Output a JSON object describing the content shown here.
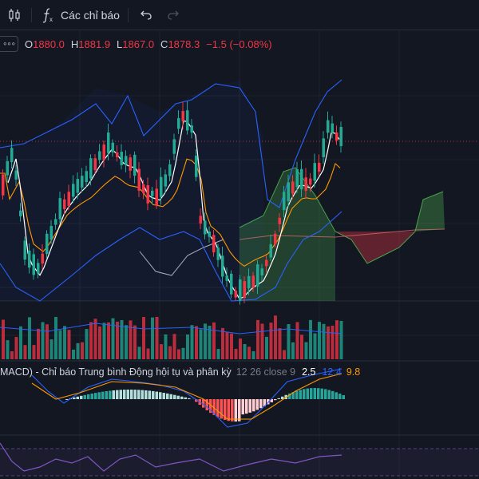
{
  "toolbar": {
    "indicators_label": "Các chỉ báo"
  },
  "legend": {
    "more_glyph": "∘∘∘",
    "open_key": "O",
    "open": "1880.0",
    "high_key": "H",
    "high": "1881.9",
    "low_key": "L",
    "low": "1867.0",
    "close_key": "C",
    "close": "1878.3",
    "change": "−1.5 (−0.08%)"
  },
  "macd": {
    "name": "MACD) - Chỉ báo Trung bình Động hội tụ và phân kỳ",
    "params": "12 26 close 9",
    "histogram": "2.5",
    "macd_line": "12.4",
    "signal_line": "9.8"
  },
  "colors": {
    "up": "#22ab94",
    "down": "#f23645",
    "background": "#131722",
    "bollinger": "#2962ff",
    "ma_fast": "#ffffff",
    "ma_slow": "#ff9800",
    "cloud_up": "#4caf50",
    "cloud_down": "#f23645",
    "rsi": "#7e57c2"
  },
  "icons": [
    "candles-icon",
    "fx-icon",
    "undo-icon",
    "redo-icon",
    "more-icon"
  ]
}
